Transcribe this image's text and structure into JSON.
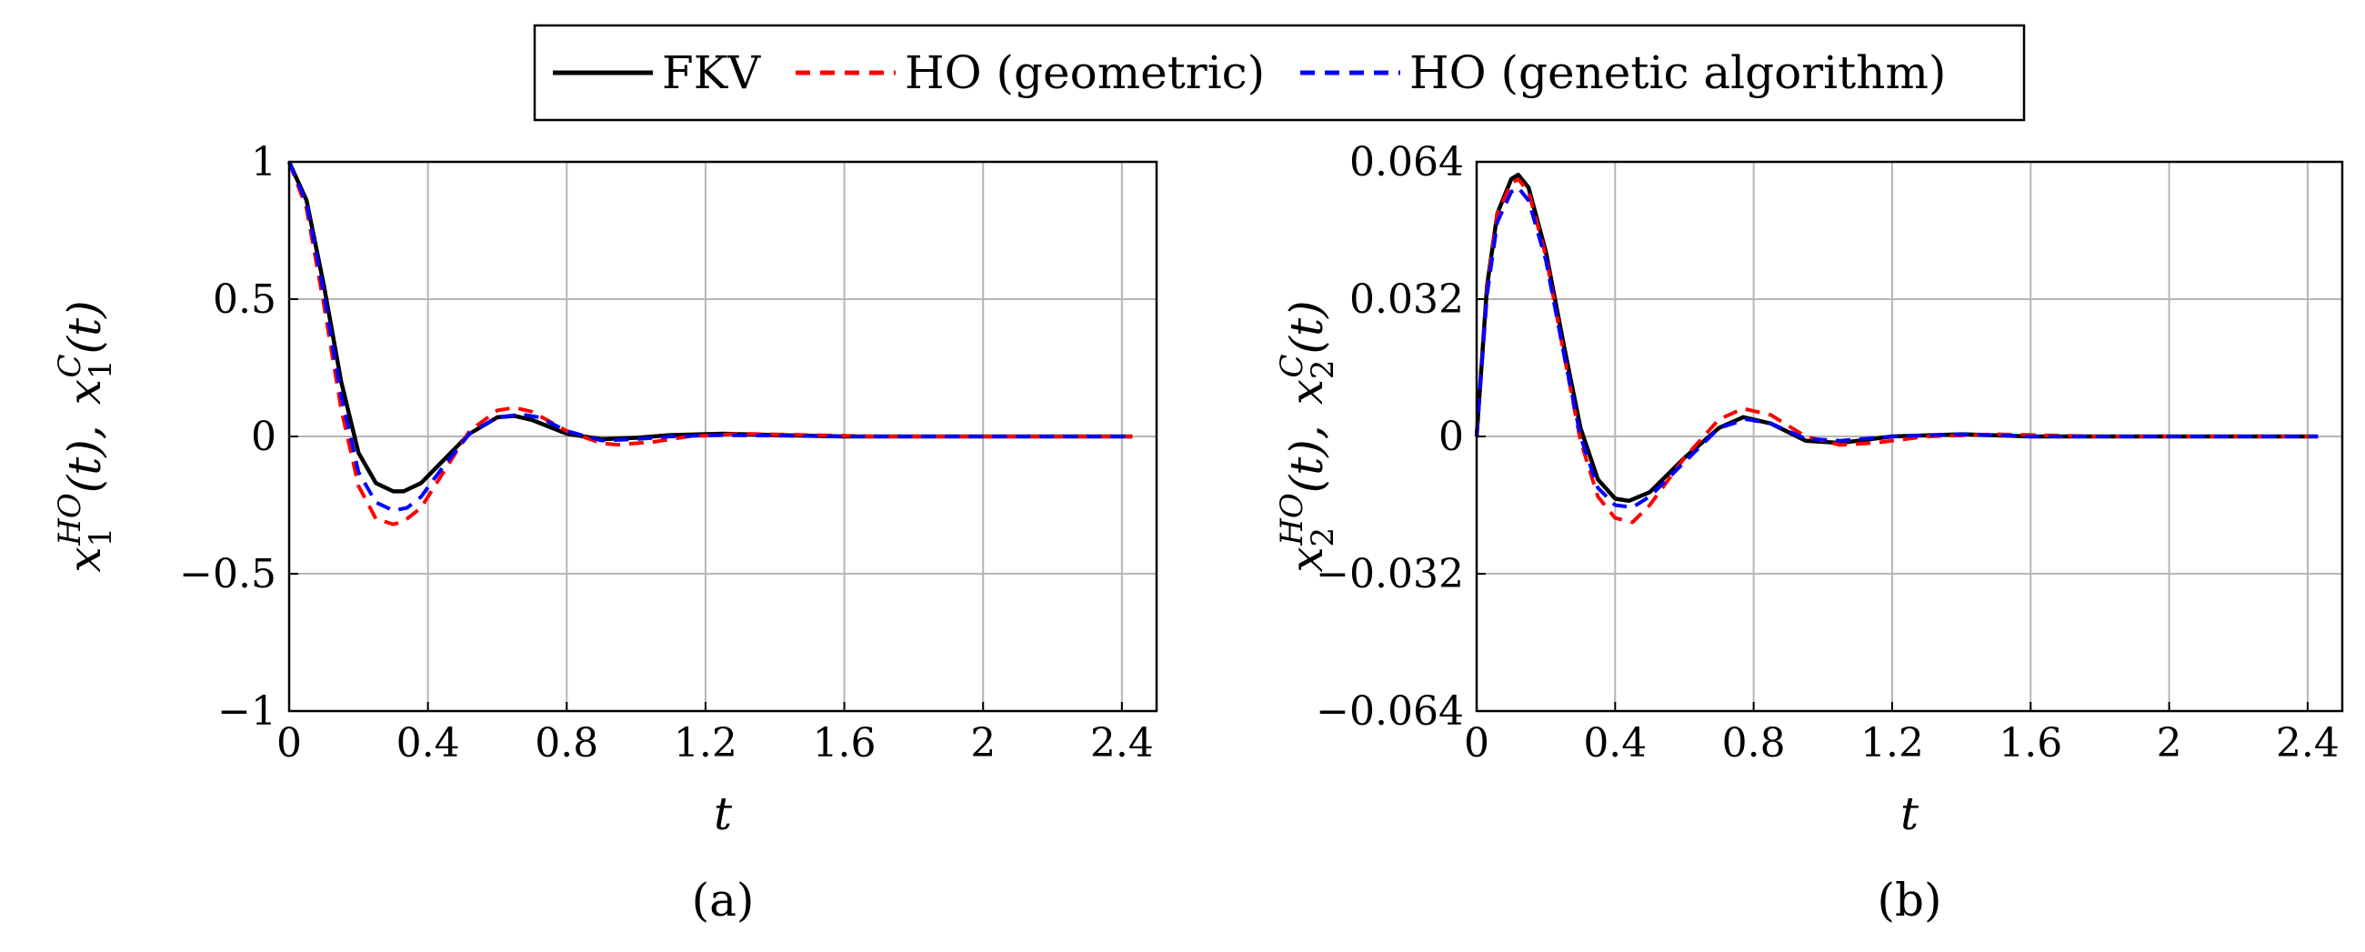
{
  "legend": {
    "entries": [
      {
        "label": "FKV",
        "color": "#000000",
        "dash": "solid"
      },
      {
        "label": "HO (geometric)",
        "color": "#ff0000",
        "dash": "dashed"
      },
      {
        "label": "HO (genetic algorithm)",
        "color": "#0000ff",
        "dash": "dashed"
      }
    ]
  },
  "chart_data": [
    {
      "type": "line",
      "panel_label": "(a)",
      "xlabel": "t",
      "ylabel": "x1HO(t), x1C(t)",
      "ylabel_parts": {
        "base1": "x",
        "sub1": "1",
        "sup1": "HO",
        "arg1": "(t),",
        "base2": "x",
        "sub2": "1",
        "sup2": "C",
        "arg2": "(t)"
      },
      "xlim": [
        0,
        2.5
      ],
      "ylim": [
        -1,
        1
      ],
      "xticks": [
        0,
        0.4,
        0.8,
        1.2,
        1.6,
        2,
        2.4
      ],
      "xtick_labels": [
        "0",
        "0.4",
        "0.8",
        "1.2",
        "1.6",
        "2",
        "2.4"
      ],
      "yticks": [
        -1,
        -0.5,
        0,
        0.5,
        1
      ],
      "ytick_labels": [
        "−1",
        "−0.5",
        "0",
        "0.5",
        "1"
      ],
      "grid": true,
      "series": [
        {
          "name": "FKV",
          "color": "#000000",
          "dash": "solid",
          "x": [
            0,
            0.05,
            0.1,
            0.15,
            0.2,
            0.25,
            0.3,
            0.33,
            0.38,
            0.45,
            0.52,
            0.6,
            0.65,
            0.7,
            0.8,
            0.9,
            1.0,
            1.1,
            1.25,
            1.4,
            1.6,
            1.8,
            2.0,
            2.2,
            2.43
          ],
          "y": [
            1,
            0.86,
            0.55,
            0.2,
            -0.06,
            -0.17,
            -0.2,
            -0.2,
            -0.17,
            -0.08,
            0.01,
            0.07,
            0.075,
            0.06,
            0.01,
            -0.01,
            -0.005,
            0.005,
            0.01,
            0.005,
            0,
            0,
            0,
            0,
            0
          ]
        },
        {
          "name": "HO (geometric)",
          "color": "#ff0000",
          "dash": "dashed",
          "x": [
            0,
            0.05,
            0.1,
            0.15,
            0.2,
            0.25,
            0.3,
            0.33,
            0.38,
            0.45,
            0.52,
            0.6,
            0.65,
            0.7,
            0.8,
            0.9,
            0.95,
            1.05,
            1.15,
            1.3,
            1.5,
            1.7,
            2.0,
            2.2,
            2.43
          ],
          "y": [
            1,
            0.83,
            0.48,
            0.1,
            -0.18,
            -0.3,
            -0.32,
            -0.31,
            -0.26,
            -0.12,
            0.02,
            0.095,
            0.105,
            0.09,
            0.02,
            -0.025,
            -0.03,
            -0.02,
            0,
            0.01,
            0.005,
            0,
            0,
            0,
            0
          ]
        },
        {
          "name": "HO (genetic algorithm)",
          "color": "#0000ff",
          "dash": "dashed",
          "x": [
            0,
            0.05,
            0.1,
            0.15,
            0.2,
            0.25,
            0.3,
            0.34,
            0.38,
            0.45,
            0.52,
            0.6,
            0.67,
            0.72,
            0.8,
            0.9,
            1.0,
            1.1,
            1.25,
            1.4,
            1.6,
            1.8,
            2.0,
            2.2,
            2.43
          ],
          "y": [
            1,
            0.85,
            0.52,
            0.15,
            -0.13,
            -0.24,
            -0.27,
            -0.26,
            -0.22,
            -0.1,
            0.01,
            0.07,
            0.08,
            0.07,
            0.02,
            -0.015,
            -0.01,
            0,
            0.005,
            0.003,
            0,
            0,
            0,
            0,
            0
          ]
        }
      ]
    },
    {
      "type": "line",
      "panel_label": "(b)",
      "xlabel": "t",
      "ylabel": "x2HO(t), x2C(t)",
      "ylabel_parts": {
        "base1": "x",
        "sub1": "2",
        "sup1": "HO",
        "arg1": "(t),",
        "base2": "x",
        "sub2": "2",
        "sup2": "C",
        "arg2": "(t)"
      },
      "xlim": [
        0,
        2.5
      ],
      "ylim": [
        -0.064,
        0.064
      ],
      "xticks": [
        0,
        0.4,
        0.8,
        1.2,
        1.6,
        2,
        2.4
      ],
      "xtick_labels": [
        "0",
        "0.4",
        "0.8",
        "1.2",
        "1.6",
        "2",
        "2.4"
      ],
      "yticks": [
        -0.064,
        -0.032,
        0,
        0.032,
        0.064
      ],
      "ytick_labels": [
        "−0.064",
        "−0.032",
        "0",
        "0.032",
        "0.064"
      ],
      "grid": true,
      "series": [
        {
          "name": "FKV",
          "color": "#000000",
          "dash": "solid",
          "x": [
            0,
            0.03,
            0.06,
            0.1,
            0.12,
            0.15,
            0.2,
            0.25,
            0.3,
            0.35,
            0.4,
            0.44,
            0.5,
            0.6,
            0.7,
            0.77,
            0.85,
            0.95,
            1.05,
            1.2,
            1.4,
            1.6,
            1.8,
            2.0,
            2.43
          ],
          "y": [
            0,
            0.035,
            0.052,
            0.06,
            0.061,
            0.058,
            0.043,
            0.022,
            0.002,
            -0.01,
            -0.0145,
            -0.015,
            -0.013,
            -0.005,
            0.002,
            0.0045,
            0.003,
            -0.001,
            -0.0015,
            0,
            0.0005,
            0,
            0,
            0,
            0
          ]
        },
        {
          "name": "HO (geometric)",
          "color": "#ff0000",
          "dash": "dashed",
          "x": [
            0,
            0.03,
            0.06,
            0.1,
            0.12,
            0.15,
            0.2,
            0.25,
            0.3,
            0.35,
            0.4,
            0.45,
            0.5,
            0.6,
            0.7,
            0.77,
            0.85,
            0.95,
            1.05,
            1.15,
            1.3,
            1.5,
            1.8,
            2.0,
            2.43
          ],
          "y": [
            0,
            0.034,
            0.052,
            0.059,
            0.06,
            0.057,
            0.042,
            0.02,
            -0.001,
            -0.014,
            -0.019,
            -0.02,
            -0.016,
            -0.005,
            0.004,
            0.0065,
            0.005,
            0,
            -0.002,
            -0.0015,
            0,
            0.0005,
            0,
            0,
            0
          ]
        },
        {
          "name": "HO (genetic algorithm)",
          "color": "#0000ff",
          "dash": "dashed",
          "x": [
            0,
            0.03,
            0.06,
            0.1,
            0.12,
            0.15,
            0.2,
            0.25,
            0.3,
            0.35,
            0.4,
            0.45,
            0.5,
            0.6,
            0.7,
            0.78,
            0.85,
            0.95,
            1.05,
            1.2,
            1.4,
            1.6,
            1.8,
            2.0,
            2.43
          ],
          "y": [
            0,
            0.033,
            0.05,
            0.057,
            0.058,
            0.055,
            0.041,
            0.02,
            0,
            -0.012,
            -0.016,
            -0.0165,
            -0.014,
            -0.006,
            0.002,
            0.004,
            0.003,
            -0.0005,
            -0.001,
            0,
            0.0005,
            0,
            0,
            0,
            0
          ]
        }
      ]
    }
  ]
}
